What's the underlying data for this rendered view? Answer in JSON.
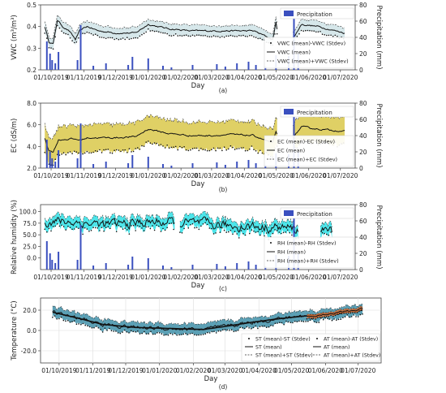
{
  "figure": {
    "panels": [
      {
        "label": "(a)"
      },
      {
        "label": "(b)"
      },
      {
        "label": "(c)"
      },
      {
        "label": "(d)"
      }
    ]
  },
  "chart_data": [
    {
      "type": "line",
      "panel": "(a)",
      "xlabel": "Day",
      "ylabel": "VWC (m³/m³)",
      "y2label": "Precipitation (mm)",
      "xlim": [
        "2019-09-21",
        "2020-07-15"
      ],
      "ylim": [
        0.2,
        0.5
      ],
      "y2lim": [
        0,
        80
      ],
      "xticks": [
        "01/10/2019",
        "01/11/2019",
        "01/12/2019",
        "01/01/2020",
        "01/02/2020",
        "01/03/2020",
        "01/04/2020",
        "01/05/2020",
        "01/06/2020",
        "01/07/2020"
      ],
      "yticks": [
        0.2,
        0.3,
        0.4,
        0.5
      ],
      "y2ticks": [
        0,
        20,
        40,
        60,
        80
      ],
      "legend_position": "right",
      "band_color": "#cfe3e6",
      "precip_color": "#3a4fbf",
      "mean_anchors": [
        [
          "2019-09-25",
          0.4
        ],
        [
          "2019-09-29",
          0.33
        ],
        [
          "2019-10-03",
          0.32
        ],
        [
          "2019-10-07",
          0.43
        ],
        [
          "2019-10-12",
          0.4
        ],
        [
          "2019-10-18",
          0.38
        ],
        [
          "2019-10-24",
          0.34
        ],
        [
          "2019-10-28",
          0.38
        ],
        [
          "2019-11-04",
          0.4
        ],
        [
          "2019-11-15",
          0.38
        ],
        [
          "2019-12-01",
          0.37
        ],
        [
          "2019-12-20",
          0.37
        ],
        [
          "2020-01-01",
          0.41
        ],
        [
          "2020-01-20",
          0.39
        ],
        [
          "2020-02-10",
          0.38
        ],
        [
          "2020-03-01",
          0.38
        ],
        [
          "2020-03-20",
          0.38
        ],
        [
          "2020-04-10",
          0.38
        ],
        [
          "2020-04-28",
          0.34
        ],
        [
          "2020-05-01",
          0.42
        ],
        [
          "2020-05-03",
          0.36
        ],
        [
          "2020-05-18",
          0.35
        ],
        [
          "2020-05-25",
          0.41
        ],
        [
          "2020-06-10",
          0.4
        ],
        [
          "2020-07-05",
          0.37
        ]
      ],
      "stdev": 0.025,
      "precip_events": [
        [
          "2019-09-27",
          35
        ],
        [
          "2019-09-30",
          20
        ],
        [
          "2019-10-02",
          12
        ],
        [
          "2019-10-05",
          8
        ],
        [
          "2019-10-08",
          22
        ],
        [
          "2019-10-26",
          12
        ],
        [
          "2019-10-29",
          55
        ],
        [
          "2019-11-10",
          5
        ],
        [
          "2019-11-22",
          8
        ],
        [
          "2019-12-13",
          6
        ],
        [
          "2019-12-17",
          16
        ],
        [
          "2020-01-01",
          14
        ],
        [
          "2020-01-15",
          5
        ],
        [
          "2020-01-23",
          3
        ],
        [
          "2020-02-12",
          6
        ],
        [
          "2020-03-06",
          7
        ],
        [
          "2020-03-14",
          4
        ],
        [
          "2020-03-25",
          8
        ],
        [
          "2020-04-05",
          10
        ],
        [
          "2020-04-12",
          6
        ],
        [
          "2020-04-21",
          4
        ],
        [
          "2020-05-01",
          18
        ],
        [
          "2020-05-13",
          17
        ],
        [
          "2020-05-18",
          75
        ],
        [
          "2020-05-22",
          20
        ]
      ],
      "gaps": [
        [
          "2020-05-03",
          "2020-05-16"
        ]
      ],
      "legend": [
        "Precipitation",
        "VWC (mean)-VWC (Stdev)",
        "VWC (mean)",
        "VWC (mean)+VWC (Stdev)"
      ]
    },
    {
      "type": "line",
      "panel": "(b)",
      "xlabel": "Day",
      "ylabel": "EC (dS/m)",
      "y2label": "Precipitation (mm)",
      "xlim": [
        "2019-09-21",
        "2020-07-15"
      ],
      "ylim": [
        2.0,
        8.0
      ],
      "y2lim": [
        0,
        80
      ],
      "xticks": [
        "01/10/2019",
        "01/11/2019",
        "01/12/2019",
        "01/01/2020",
        "01/02/2020",
        "01/03/2020",
        "01/04/2020",
        "01/05/2020",
        "01/06/2020",
        "01/07/2020"
      ],
      "yticks": [
        2.0,
        4.0,
        6.0,
        8.0
      ],
      "y2ticks": [
        0,
        20,
        40,
        60,
        80
      ],
      "legend_position": "right",
      "band_color": "#d9c84a",
      "precip_color": "#3a4fbf",
      "mean_anchors": [
        [
          "2019-09-25",
          4.8
        ],
        [
          "2019-09-29",
          3.6
        ],
        [
          "2019-10-03",
          3.5
        ],
        [
          "2019-10-08",
          4.6
        ],
        [
          "2019-10-20",
          4.7
        ],
        [
          "2019-10-29",
          4.6
        ],
        [
          "2019-11-05",
          4.8
        ],
        [
          "2019-12-01",
          4.8
        ],
        [
          "2019-12-20",
          4.9
        ],
        [
          "2020-01-01",
          5.6
        ],
        [
          "2020-01-20",
          5.2
        ],
        [
          "2020-02-10",
          5.0
        ],
        [
          "2020-03-01",
          5.0
        ],
        [
          "2020-03-20",
          5.1
        ],
        [
          "2020-04-10",
          5.0
        ],
        [
          "2020-04-28",
          4.3
        ],
        [
          "2020-05-01",
          5.4
        ],
        [
          "2020-05-03",
          4.8
        ],
        [
          "2020-05-18",
          4.9
        ],
        [
          "2020-05-25",
          5.8
        ],
        [
          "2020-06-10",
          5.6
        ],
        [
          "2020-07-05",
          5.4
        ]
      ],
      "stdev": 1.25,
      "precip_events": [
        [
          "2019-09-27",
          35
        ],
        [
          "2019-09-30",
          20
        ],
        [
          "2019-10-02",
          12
        ],
        [
          "2019-10-05",
          8
        ],
        [
          "2019-10-08",
          22
        ],
        [
          "2019-10-26",
          12
        ],
        [
          "2019-10-29",
          55
        ],
        [
          "2019-11-10",
          5
        ],
        [
          "2019-11-22",
          8
        ],
        [
          "2019-12-13",
          6
        ],
        [
          "2019-12-17",
          16
        ],
        [
          "2020-01-01",
          14
        ],
        [
          "2020-01-15",
          5
        ],
        [
          "2020-01-23",
          3
        ],
        [
          "2020-02-12",
          6
        ],
        [
          "2020-03-06",
          7
        ],
        [
          "2020-03-14",
          4
        ],
        [
          "2020-03-25",
          8
        ],
        [
          "2020-04-05",
          10
        ],
        [
          "2020-04-12",
          6
        ],
        [
          "2020-04-21",
          4
        ],
        [
          "2020-05-01",
          18
        ],
        [
          "2020-05-13",
          17
        ],
        [
          "2020-05-18",
          75
        ],
        [
          "2020-05-22",
          20
        ]
      ],
      "gaps": [
        [
          "2020-05-03",
          "2020-05-16"
        ]
      ],
      "legend": [
        "Precipitation",
        "EC (mean)-EC (Stdev)",
        "EC (mean)",
        "EC (mean)+EC (Stdev)"
      ]
    },
    {
      "type": "line",
      "panel": "(c)",
      "xlabel": "Day",
      "ylabel": "Relative humidity (%)",
      "y2label": "Precipitation (mm)",
      "xlim": [
        "2019-09-21",
        "2020-07-15"
      ],
      "ylim": [
        -25,
        115
      ],
      "y2lim": [
        0,
        80
      ],
      "xticks": [
        "01/10/2019",
        "01/11/2019",
        "01/12/2019",
        "01/01/2020",
        "01/02/2020",
        "01/03/2020",
        "01/04/2020",
        "01/05/2020",
        "01/06/2020",
        "01/07/2020"
      ],
      "yticks": [
        0.0,
        25.0,
        50.0,
        75.0,
        100.0
      ],
      "y2ticks": [
        0,
        20,
        40,
        60,
        80
      ],
      "legend_position": "right",
      "band_color": "#2ee0e6",
      "precip_color": "#3a4fbf",
      "mean_anchors": [
        [
          "2019-09-25",
          80
        ],
        [
          "2019-10-20",
          78
        ],
        [
          "2019-11-20",
          72
        ],
        [
          "2019-12-20",
          75
        ],
        [
          "2020-01-10",
          78
        ],
        [
          "2020-02-10",
          75
        ],
        [
          "2020-03-10",
          70
        ],
        [
          "2020-04-10",
          68
        ],
        [
          "2020-05-10",
          65
        ],
        [
          "2020-05-23",
          60
        ],
        [
          "2020-06-10",
          60
        ],
        [
          "2020-06-23",
          58
        ]
      ],
      "stdev": 12,
      "precip_events": [
        [
          "2019-09-27",
          35
        ],
        [
          "2019-09-30",
          20
        ],
        [
          "2019-10-02",
          12
        ],
        [
          "2019-10-05",
          8
        ],
        [
          "2019-10-08",
          22
        ],
        [
          "2019-10-26",
          12
        ],
        [
          "2019-10-29",
          55
        ],
        [
          "2019-11-10",
          5
        ],
        [
          "2019-11-22",
          8
        ],
        [
          "2019-12-13",
          6
        ],
        [
          "2019-12-17",
          16
        ],
        [
          "2020-01-01",
          14
        ],
        [
          "2020-01-15",
          5
        ],
        [
          "2020-01-23",
          3
        ],
        [
          "2020-02-12",
          6
        ],
        [
          "2020-03-06",
          7
        ],
        [
          "2020-03-14",
          4
        ],
        [
          "2020-03-25",
          8
        ],
        [
          "2020-04-05",
          10
        ],
        [
          "2020-04-12",
          6
        ],
        [
          "2020-04-21",
          4
        ],
        [
          "2020-05-01",
          18
        ],
        [
          "2020-05-13",
          17
        ],
        [
          "2020-05-18",
          75
        ],
        [
          "2020-05-22",
          20
        ]
      ],
      "gaps": [
        [
          "2020-01-27",
          "2020-01-30"
        ],
        [
          "2020-05-23",
          "2020-06-11"
        ]
      ],
      "legend": [
        "Precipitation",
        "RH (mean)-RH (Stdev)",
        "RH (mean)",
        "RH (mean)+RH (Stdev)"
      ]
    },
    {
      "type": "line",
      "panel": "(d)",
      "xlabel": "Day",
      "ylabel": "Temperature (°C)",
      "xlim": [
        "2019-09-14",
        "2020-07-22"
      ],
      "ylim": [
        -32,
        32
      ],
      "xticks": [
        "01/10/2019",
        "01/11/2019",
        "01/12/2019",
        "01/01/2020",
        "01/02/2020",
        "01/03/2020",
        "01/04/2020",
        "01/05/2020",
        "01/06/2020",
        "01/07/2020"
      ],
      "yticks": [
        -20.0,
        0.0,
        20.0
      ],
      "legend_position": "lower-right",
      "st_band_color": "#3f8fa8",
      "at_band_color": "#e0763a",
      "st_mean_anchors": [
        [
          "2019-09-25",
          18
        ],
        [
          "2019-10-15",
          13
        ],
        [
          "2019-11-10",
          6
        ],
        [
          "2019-12-10",
          3
        ],
        [
          "2020-01-10",
          2
        ],
        [
          "2020-02-10",
          1
        ],
        [
          "2020-03-01",
          4
        ],
        [
          "2020-03-25",
          8
        ],
        [
          "2020-04-15",
          11
        ],
        [
          "2020-05-10",
          14
        ],
        [
          "2020-06-01",
          16
        ],
        [
          "2020-07-05",
          20
        ]
      ],
      "at_mean_anchors": [
        [
          "2020-05-15",
          14
        ],
        [
          "2020-06-01",
          16
        ],
        [
          "2020-06-15",
          18
        ],
        [
          "2020-07-05",
          21
        ]
      ],
      "stdev": 5,
      "legend": [
        "ST (mean)-ST (Stdev)",
        "ST (mean)",
        "ST (mean)+ST (Stdev)",
        "AT (mean)-AT (Stdev)",
        "AT (mean)",
        "AT (mean)+AT (Stdev)"
      ]
    }
  ]
}
